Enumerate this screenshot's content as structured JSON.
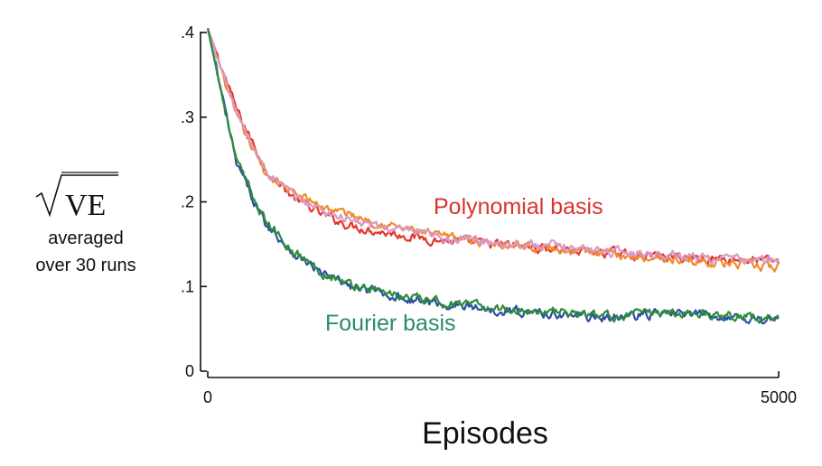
{
  "chart_data": {
    "type": "line",
    "xlabel": "Episodes",
    "ylabel": {
      "symbol": "√VE",
      "radicand": "VE",
      "line1": "averaged",
      "line2": "over 30 runs"
    },
    "xlim": [
      0,
      5000
    ],
    "ylim": [
      0,
      0.4
    ],
    "x_ticks": [
      {
        "value": 0,
        "label": "0"
      },
      {
        "value": 5000,
        "label": "5000"
      }
    ],
    "y_ticks": [
      {
        "value": 0,
        "label": "0"
      },
      {
        "value": 0.1,
        "label": ".1"
      },
      {
        "value": 0.2,
        "label": ".2"
      },
      {
        "value": 0.3,
        "label": ".3"
      },
      {
        "value": 0.4,
        "label": ".4"
      }
    ],
    "grid": false,
    "annotations": [
      {
        "text": "Polynomial basis",
        "color": "#d9332b"
      },
      {
        "text": "Fourier basis",
        "color": "#2a8a6e"
      }
    ],
    "series": [
      {
        "group": "Polynomial basis",
        "color": "#e8342a",
        "x": [
          0,
          250,
          500,
          750,
          1000,
          1250,
          1500,
          1750,
          2000,
          2500,
          3000,
          3500,
          4000,
          4500,
          5000
        ],
        "values": [
          0.405,
          0.31,
          0.24,
          0.205,
          0.185,
          0.172,
          0.165,
          0.16,
          0.155,
          0.15,
          0.145,
          0.14,
          0.135,
          0.133,
          0.13
        ]
      },
      {
        "group": "Polynomial basis",
        "color": "#f28a2e",
        "x": [
          0,
          250,
          500,
          750,
          1000,
          1250,
          1500,
          1750,
          2000,
          2500,
          3000,
          3500,
          4000,
          4500,
          5000
        ],
        "values": [
          0.405,
          0.3,
          0.235,
          0.21,
          0.195,
          0.185,
          0.175,
          0.168,
          0.16,
          0.152,
          0.145,
          0.138,
          0.133,
          0.128,
          0.122
        ]
      },
      {
        "group": "Polynomial basis",
        "color": "#d89ac8",
        "x": [
          0,
          250,
          500,
          750,
          1000,
          1250,
          1500,
          1750,
          2000,
          2500,
          3000,
          3500,
          4000,
          4500,
          5000
        ],
        "values": [
          0.405,
          0.305,
          0.238,
          0.207,
          0.19,
          0.178,
          0.17,
          0.165,
          0.158,
          0.153,
          0.148,
          0.142,
          0.138,
          0.133,
          0.13
        ]
      },
      {
        "group": "Fourier basis",
        "color": "#2b4fa8",
        "x": [
          0,
          250,
          500,
          750,
          1000,
          1250,
          1500,
          1750,
          2000,
          2500,
          3000,
          3500,
          4000,
          4500,
          5000
        ],
        "values": [
          0.405,
          0.245,
          0.175,
          0.14,
          0.115,
          0.1,
          0.093,
          0.085,
          0.08,
          0.073,
          0.068,
          0.063,
          0.068,
          0.065,
          0.06
        ]
      },
      {
        "group": "Fourier basis",
        "color": "#2f8b3a",
        "x": [
          0,
          250,
          500,
          750,
          1000,
          1250,
          1500,
          1750,
          2000,
          2500,
          3000,
          3500,
          4000,
          4500,
          5000
        ],
        "values": [
          0.405,
          0.248,
          0.178,
          0.142,
          0.117,
          0.102,
          0.095,
          0.087,
          0.082,
          0.075,
          0.07,
          0.065,
          0.07,
          0.067,
          0.062
        ]
      }
    ]
  }
}
